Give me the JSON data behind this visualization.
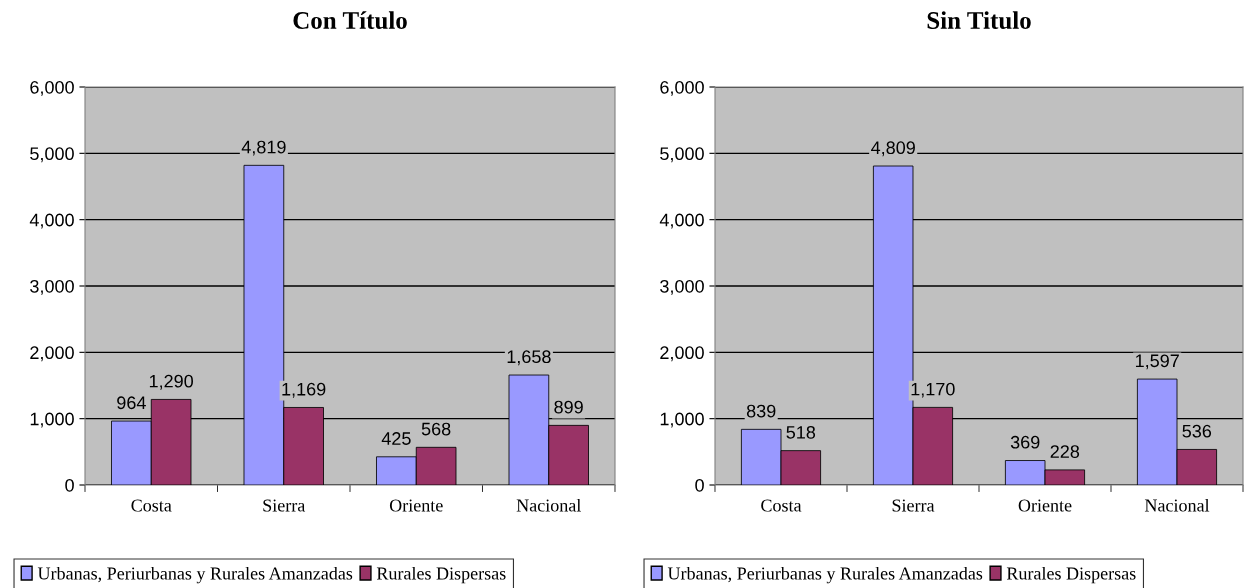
{
  "chart_data": [
    {
      "type": "bar",
      "title": "Con Título",
      "categories": [
        "Costa",
        "Sierra",
        "Oriente",
        "Nacional"
      ],
      "series": [
        {
          "name": "Urbanas, Periurbanas y Rurales Amanzadas",
          "color": "#9999ff",
          "values": [
            964,
            4819,
            425,
            1658
          ],
          "value_labels": [
            "964",
            "4,819",
            "425",
            "1,658"
          ]
        },
        {
          "name": "Rurales Dispersas",
          "color": "#993366",
          "values": [
            1290,
            1169,
            568,
            899
          ],
          "value_labels": [
            "1,290",
            "1,169",
            "568",
            "899"
          ]
        }
      ],
      "ylim": [
        0,
        6000
      ],
      "yticks": [
        0,
        {
          "value": 1000,
          "label": "1,000"
        },
        {
          "value": 2000,
          "label": "2,000"
        },
        {
          "value": 3000,
          "label": "3,000"
        },
        {
          "value": 4000,
          "label": "4,000"
        },
        {
          "value": 5000,
          "label": "5,000"
        },
        {
          "value": 6000,
          "label": "6,000"
        }
      ],
      "grid": "y",
      "legend": "bottom"
    },
    {
      "type": "bar",
      "title": "Sin Titulo",
      "categories": [
        "Costa",
        "Sierra",
        "Oriente",
        "Nacional"
      ],
      "series": [
        {
          "name": "Urbanas, Periurbanas y Rurales Amanzadas",
          "color": "#9999ff",
          "values": [
            839,
            4809,
            369,
            1597
          ],
          "value_labels": [
            "839",
            "4,809",
            "369",
            "1,597"
          ]
        },
        {
          "name": "Rurales Dispersas",
          "color": "#993366",
          "values": [
            518,
            1170,
            228,
            536
          ],
          "value_labels": [
            "518",
            "1,170",
            "228",
            "536"
          ]
        }
      ],
      "ylim": [
        0,
        6000
      ],
      "yticks": [
        0,
        {
          "value": 1000,
          "label": "1,000"
        },
        {
          "value": 2000,
          "label": "2,000"
        },
        {
          "value": 3000,
          "label": "3,000"
        },
        {
          "value": 4000,
          "label": "4,000"
        },
        {
          "value": 5000,
          "label": "5,000"
        },
        {
          "value": 6000,
          "label": "6,000"
        }
      ],
      "grid": "y",
      "legend": "bottom"
    }
  ]
}
